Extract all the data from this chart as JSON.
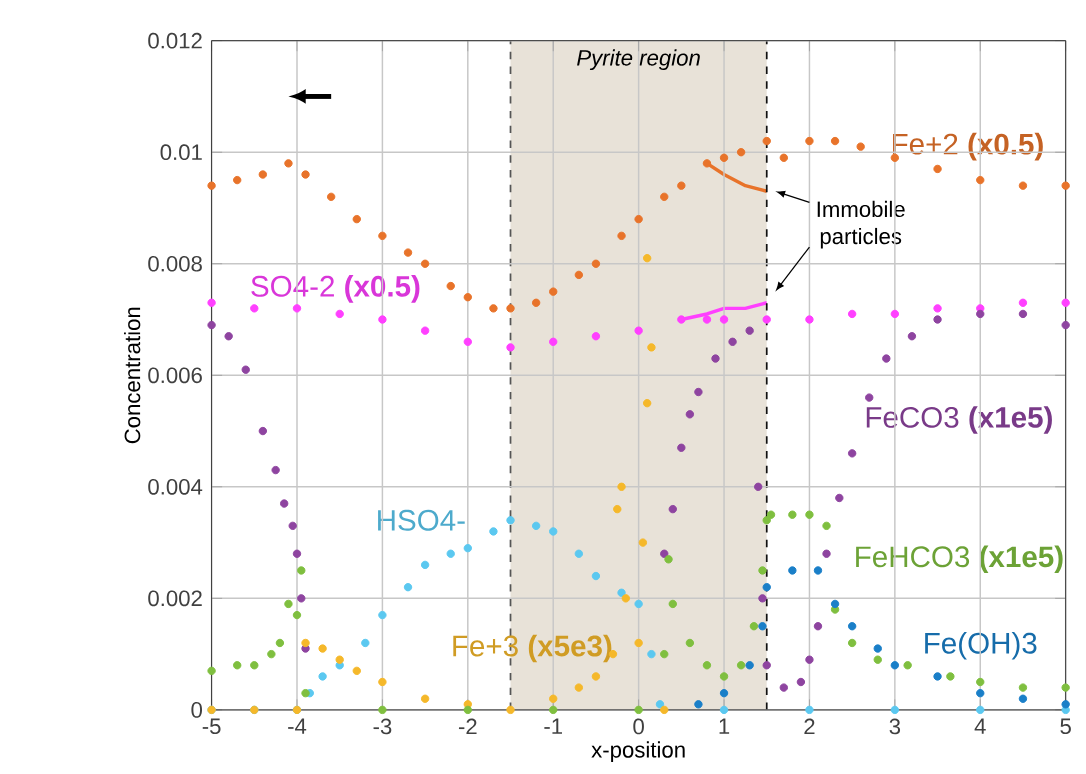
{
  "chart_data": {
    "type": "scatter",
    "xlabel": "x-position",
    "ylabel": "Concentration",
    "xlim": [
      -5,
      5
    ],
    "ylim": [
      0,
      0.012
    ],
    "xticks": [
      -5,
      -4,
      -3,
      -2,
      -1,
      0,
      1,
      2,
      3,
      4,
      5
    ],
    "yticks": [
      0,
      0.002,
      0.004,
      0.006,
      0.008,
      0.01,
      0.012
    ],
    "grid": true,
    "bands": [
      {
        "axis": "x",
        "from": -1.5,
        "to": 1.5,
        "label": "Pyrite region",
        "color": "#e8e2d8"
      }
    ],
    "ref_lines": [
      {
        "axis": "x",
        "value": -1.5,
        "color": "#555555",
        "line_style": "dashed"
      },
      {
        "axis": "x",
        "value": 1.5,
        "color": "#111111",
        "line_style": "dashed"
      }
    ],
    "annotations": [
      "Immobile particles"
    ],
    "series": [
      {
        "name": "Fe+2 **(x0.5)**",
        "marker": "circle",
        "color": "#e8732a",
        "x": [
          -5,
          -4.7,
          -4.4,
          -4.1,
          -3.9,
          -3.6,
          -3.3,
          -3,
          -2.7,
          -2.5,
          -2.2,
          -2,
          -1.7,
          -1.5,
          -1.2,
          -1,
          -0.7,
          -0.5,
          -0.2,
          0,
          0.3,
          0.5,
          0.8,
          1.0,
          1.2,
          1.5,
          1.7,
          2.0,
          2.3,
          2.6,
          3,
          3.5,
          4,
          4.5,
          5
        ],
        "values": [
          0.0094,
          0.0095,
          0.0096,
          0.0098,
          0.0096,
          0.0092,
          0.0088,
          0.0085,
          0.0082,
          0.008,
          0.0076,
          0.0074,
          0.0072,
          0.0072,
          0.0073,
          0.0075,
          0.0078,
          0.008,
          0.0085,
          0.0088,
          0.0092,
          0.0094,
          0.0098,
          0.0099,
          0.01,
          0.0102,
          0.0099,
          0.0102,
          0.0102,
          0.0101,
          0.0099,
          0.0097,
          0.0095,
          0.0094,
          0.0094
        ]
      },
      {
        "type": "line",
        "marker": "none",
        "color": "#e8732a",
        "x": [
          0.8,
          1.0,
          1.25,
          1.5
        ],
        "values": [
          0.0098,
          0.0096,
          0.0094,
          0.0093
        ]
      },
      {
        "name": "SO4-2 **(x0.5)**",
        "marker": "circle",
        "color": "#ff40ff",
        "x": [
          -5,
          -4.5,
          -4,
          -3.5,
          -3,
          -2.5,
          -2,
          -1.5,
          -1,
          -0.5,
          0,
          0.5,
          0.8,
          1.0,
          1.5,
          2,
          2.5,
          3,
          3.5,
          4,
          4.5,
          5
        ],
        "values": [
          0.0073,
          0.0072,
          0.0072,
          0.0071,
          0.007,
          0.0068,
          0.0066,
          0.0065,
          0.0066,
          0.0067,
          0.0068,
          0.007,
          0.007,
          0.007,
          0.007,
          0.007,
          0.0071,
          0.0071,
          0.0072,
          0.0072,
          0.0073,
          0.0073
        ]
      },
      {
        "type": "line",
        "marker": "none",
        "color": "#ff40ff",
        "x": [
          0.5,
          0.8,
          1.0,
          1.25,
          1.5
        ],
        "values": [
          0.007,
          0.0071,
          0.0072,
          0.0072,
          0.0073
        ]
      },
      {
        "name": "FeCO3 **(x1e5)**",
        "marker": "circle",
        "color": "#8e44a0",
        "x": [
          -5,
          -4.8,
          -4.6,
          -4.4,
          -4.25,
          -4.15,
          -4.05,
          -4.0,
          -3.95,
          -3.9,
          0.3,
          0.4,
          0.5,
          0.6,
          0.7,
          0.9,
          1.1,
          1.3,
          1.4,
          1.45,
          1.5,
          1.7,
          1.9,
          2.0,
          2.1,
          2.2,
          2.35,
          2.5,
          2.7,
          2.9,
          3.2,
          3.5,
          4,
          4.5,
          5
        ],
        "values": [
          0.0069,
          0.0067,
          0.0061,
          0.005,
          0.0043,
          0.0037,
          0.0033,
          0.0028,
          0.002,
          0.0011,
          0.0028,
          0.0036,
          0.0047,
          0.0053,
          0.0057,
          0.0063,
          0.0066,
          0.0068,
          0.004,
          0.002,
          0.0008,
          0.0004,
          0.0005,
          0.0009,
          0.0015,
          0.0028,
          0.0038,
          0.0046,
          0.0056,
          0.0063,
          0.0067,
          0.007,
          0.0071,
          0.0071,
          0.0069
        ]
      },
      {
        "name": "HSO4-",
        "marker": "circle",
        "color": "#5bc8f0",
        "x": [
          -5,
          -4.5,
          -4,
          -3.85,
          -3.7,
          -3.5,
          -3.2,
          -3,
          -2.7,
          -2.5,
          -2.2,
          -2,
          -1.7,
          -1.5,
          -1.2,
          -1,
          -0.7,
          -0.5,
          -0.2,
          0,
          0.15,
          0.25,
          1,
          2,
          3,
          4,
          5
        ],
        "values": [
          0,
          0,
          0,
          0.0003,
          0.0006,
          0.0008,
          0.0012,
          0.0017,
          0.0022,
          0.0026,
          0.0028,
          0.0029,
          0.0032,
          0.0034,
          0.0033,
          0.0032,
          0.0028,
          0.0024,
          0.0021,
          0.0019,
          0.001,
          0.0001,
          0,
          0,
          0,
          0,
          0
        ]
      },
      {
        "name": "Fe+3 **(x5e3)**",
        "marker": "circle",
        "color": "#f5b82a",
        "x": [
          -5,
          -4.5,
          -4,
          -3.9,
          -3.7,
          -3.5,
          -3.3,
          -3,
          -2.5,
          -2,
          -1.5,
          -1,
          -0.7,
          -0.5,
          -0.3,
          -0.25,
          -0.2,
          -0.15,
          0,
          0.05,
          0.1,
          0.1,
          0.15,
          0.3
        ],
        "values": [
          0,
          0,
          0,
          0.0012,
          0.0011,
          0.0009,
          0.0007,
          0.0005,
          0.0002,
          0.0001,
          0,
          0.0002,
          0.0004,
          0.0006,
          0.001,
          0.0036,
          0.004,
          0.002,
          0.0012,
          0.003,
          0.0055,
          0.0081,
          0.0065,
          0
        ]
      },
      {
        "name": "FeHCO3 **(x1e5)**",
        "marker": "circle",
        "color": "#7fbf3f",
        "x": [
          -5,
          -4.7,
          -4.5,
          -4.3,
          -4.2,
          -4.1,
          -4.0,
          -3.95,
          -3.9,
          -3,
          -2,
          -1,
          0,
          0.3,
          0.35,
          0.4,
          0.6,
          0.8,
          1,
          1.2,
          1.35,
          1.45,
          1.5,
          1.55,
          1.8,
          2.0,
          2.2,
          2.3,
          2.5,
          2.8,
          3.15,
          3.65,
          4,
          4.5,
          5
        ],
        "values": [
          0.0007,
          0.0008,
          0.0008,
          0.001,
          0.0012,
          0.0019,
          0.0017,
          0.0025,
          0.0003,
          0,
          0,
          0,
          0,
          0.001,
          0.0027,
          0.0019,
          0.0012,
          0.0008,
          0.0006,
          0.0008,
          0.0015,
          0.0025,
          0.0034,
          0.0035,
          0.0035,
          0.0035,
          0.0033,
          0.0018,
          0.0012,
          0.0009,
          0.0008,
          0.0006,
          0.0005,
          0.0004,
          0.0004
        ]
      },
      {
        "name": "Fe(OH)3",
        "marker": "circle",
        "color": "#1a7fc8",
        "x": [
          0.7,
          1,
          1.3,
          1.45,
          1.5,
          1.8,
          2.1,
          2.3,
          2.5,
          2.8,
          3,
          3.5,
          4,
          4.5,
          5
        ],
        "values": [
          0.0001,
          0.0003,
          0.0008,
          0.0015,
          0.0022,
          0.0025,
          0.0025,
          0.0019,
          0.0015,
          0.0011,
          0.0008,
          0.0006,
          0.0003,
          0.0002,
          0.0001
        ]
      }
    ]
  }
}
